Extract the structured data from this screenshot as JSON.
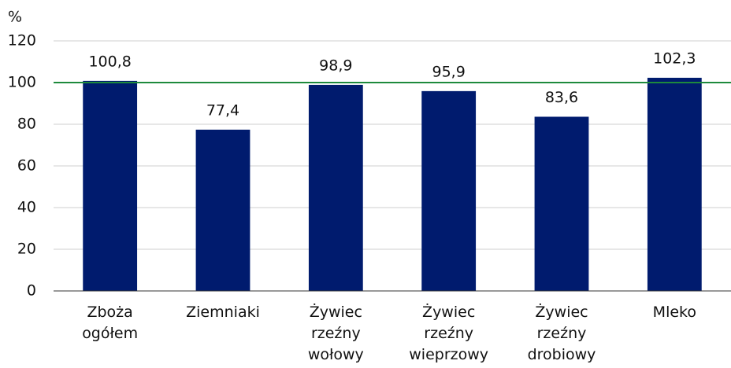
{
  "chart_data": {
    "type": "bar",
    "y_unit": "%",
    "categories": [
      "Zboża ogółem",
      "Ziemniaki",
      "Żywiec rzeźny wołowy",
      "Żywiec rzeźny wieprzowy",
      "Żywiec rzeźny drobiowy",
      "Mleko"
    ],
    "values": [
      100.8,
      77.4,
      98.9,
      95.9,
      83.6,
      102.3
    ],
    "value_labels": [
      "100,8",
      "77,4",
      "98,9",
      "95,9",
      "83,6",
      "102,3"
    ],
    "color": "#001b6e",
    "reference_line": {
      "value": 100,
      "color": "#1e8a3c"
    },
    "ylim": [
      0,
      120
    ],
    "yticks": [
      0,
      20,
      40,
      60,
      80,
      100,
      120
    ],
    "grid": true
  }
}
